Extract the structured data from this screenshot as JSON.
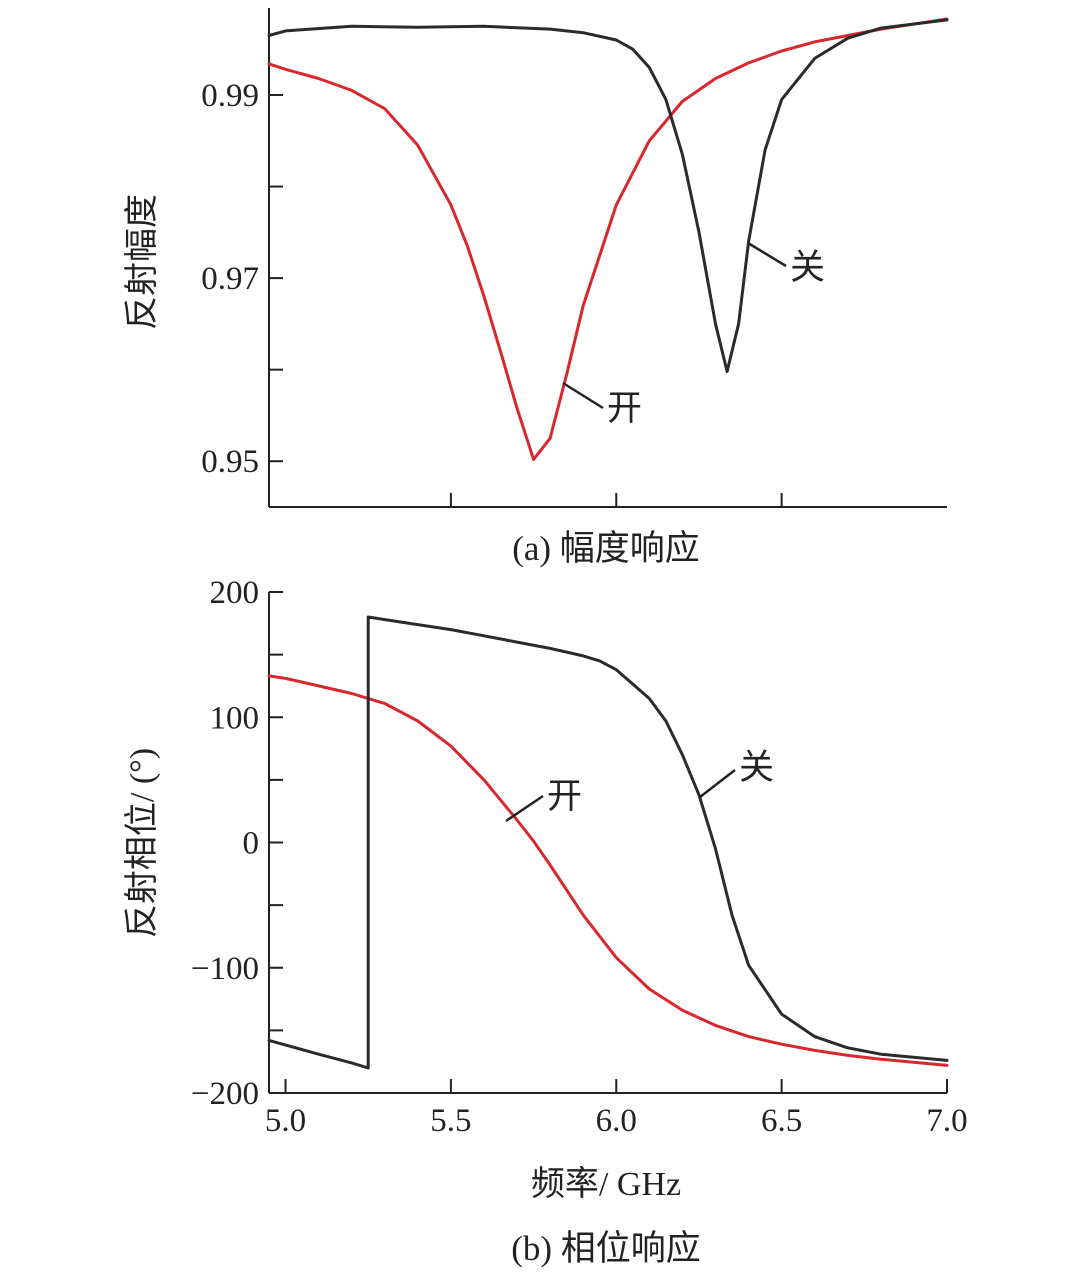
{
  "colors": {
    "on": "#d6282e",
    "off": "#2b2b2b",
    "axis": "#222222"
  },
  "chart_data": [
    {
      "type": "line",
      "id": "amplitude",
      "caption": "(a) 幅度响应",
      "ylabel": "反射幅度",
      "xlim": [
        4.95,
        7.0
      ],
      "ylim": [
        0.945,
        0.9995
      ],
      "yticks": [
        0.95,
        0.96,
        0.97,
        0.98,
        0.99
      ],
      "ytick_labels": [
        "0.95",
        "",
        "0.97",
        "",
        "0.99"
      ],
      "xticks": [
        5.5,
        6.0,
        6.5
      ],
      "series": [
        {
          "name": "开",
          "color": "#d6282e",
          "x": [
            4.95,
            5.0,
            5.1,
            5.2,
            5.3,
            5.4,
            5.5,
            5.55,
            5.6,
            5.65,
            5.7,
            5.75,
            5.8,
            5.85,
            5.9,
            6.0,
            6.1,
            6.2,
            6.3,
            6.4,
            6.5,
            6.6,
            6.8,
            7.0
          ],
          "y": [
            0.9934,
            0.9928,
            0.9918,
            0.9905,
            0.9885,
            0.9845,
            0.978,
            0.9735,
            0.968,
            0.962,
            0.9558,
            0.9502,
            0.9525,
            0.9595,
            0.967,
            0.978,
            0.985,
            0.9893,
            0.9918,
            0.9935,
            0.9948,
            0.9958,
            0.9972,
            0.9983
          ]
        },
        {
          "name": "关",
          "color": "#2b2b2b",
          "x": [
            4.95,
            5.0,
            5.2,
            5.4,
            5.6,
            5.8,
            5.9,
            6.0,
            6.05,
            6.1,
            6.15,
            6.2,
            6.25,
            6.3,
            6.335,
            6.37,
            6.4,
            6.45,
            6.5,
            6.6,
            6.7,
            6.8,
            7.0
          ],
          "y": [
            0.9965,
            0.997,
            0.9975,
            0.9974,
            0.9975,
            0.9972,
            0.9968,
            0.996,
            0.995,
            0.993,
            0.9895,
            0.9835,
            0.975,
            0.965,
            0.9598,
            0.965,
            0.974,
            0.984,
            0.9895,
            0.994,
            0.9962,
            0.9973,
            0.9982
          ]
        }
      ]
    },
    {
      "type": "line",
      "id": "phase",
      "caption": "(b) 相位响应",
      "ylabel": "反射相位/ (°)",
      "xlabel": "频率/ GHz",
      "xlim": [
        4.95,
        7.0
      ],
      "ylim": [
        -200,
        200
      ],
      "yticks": [
        -200,
        -150,
        -100,
        -50,
        0,
        50,
        100,
        150,
        200
      ],
      "ytick_labels": [
        "−200",
        "",
        "−100",
        "",
        "0",
        "",
        "100",
        "",
        "200"
      ],
      "xticks": [
        5.0,
        5.5,
        6.0,
        6.5,
        7.0
      ],
      "xtick_labels": [
        "5.0",
        "5.5",
        "6.0",
        "6.5",
        "7.0"
      ],
      "series": [
        {
          "name": "开",
          "color": "#d6282e",
          "x": [
            4.95,
            5.0,
            5.1,
            5.2,
            5.3,
            5.4,
            5.5,
            5.6,
            5.7,
            5.75,
            5.8,
            5.85,
            5.9,
            6.0,
            6.1,
            6.2,
            6.3,
            6.4,
            6.5,
            6.6,
            6.7,
            6.8,
            7.0
          ],
          "y": [
            133,
            131,
            125,
            119,
            111,
            97,
            77,
            50,
            18,
            1,
            -18,
            -38,
            -58,
            -92,
            -117,
            -134,
            -146,
            -155,
            -161,
            -166,
            -170,
            -173,
            -178
          ]
        },
        {
          "name": "关",
          "color": "#2b2b2b",
          "x": [
            4.95,
            5.1,
            5.2,
            5.25,
            5.25,
            5.3,
            5.4,
            5.5,
            5.6,
            5.7,
            5.8,
            5.9,
            5.95,
            6.0,
            6.1,
            6.15,
            6.2,
            6.25,
            6.3,
            6.35,
            6.4,
            6.5,
            6.6,
            6.7,
            6.8,
            7.0
          ],
          "y": [
            -158,
            -169,
            -176,
            -180,
            180,
            178,
            174,
            170,
            165,
            160,
            155,
            149,
            145,
            138,
            115,
            97,
            70,
            38,
            -5,
            -58,
            -98,
            -137,
            -155,
            -164,
            -169,
            -174
          ]
        }
      ]
    }
  ]
}
